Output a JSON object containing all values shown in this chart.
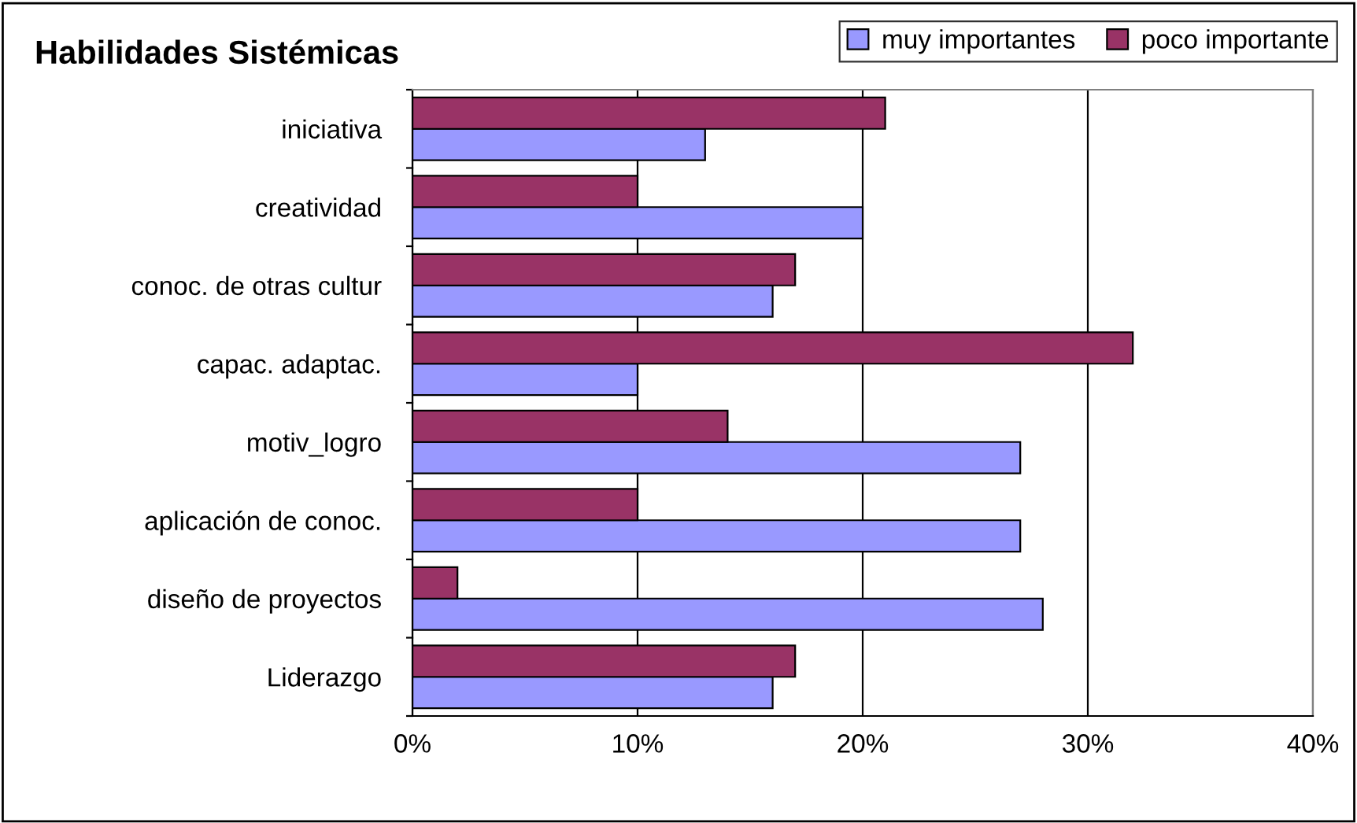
{
  "chart_data": {
    "type": "bar",
    "orientation": "horizontal",
    "title": "Habilidades Sistémicas",
    "categories": [
      "iniciativa",
      "creatividad",
      "conoc. de otras cultur",
      "capac. adaptac.",
      "motiv_logro",
      "aplicación de conoc.",
      "diseño de proyectos",
      "Liderazgo"
    ],
    "series": [
      {
        "name": "muy importantes",
        "color": "#9999ff",
        "values": [
          13,
          20,
          16,
          10,
          27,
          27,
          28,
          16
        ]
      },
      {
        "name": "poco importante",
        "color": "#993366",
        "values": [
          21,
          10,
          17,
          32,
          14,
          10,
          2,
          17
        ]
      }
    ],
    "xlim": [
      0,
      40
    ],
    "xticks": [
      {
        "value": 0,
        "label": "0%"
      },
      {
        "value": 10,
        "label": "10%"
      },
      {
        "value": 20,
        "label": "20%"
      },
      {
        "value": 30,
        "label": "30%"
      },
      {
        "value": 40,
        "label": "40%"
      }
    ],
    "grid": "x",
    "legend": "top right"
  }
}
